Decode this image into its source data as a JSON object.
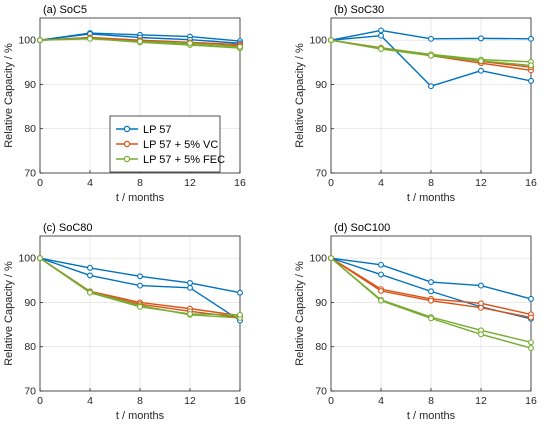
{
  "chart_data": [
    {
      "type": "line",
      "title": "(a) SoC5",
      "xlabel": "t / months",
      "ylabel": "Relative Capacity / %",
      "xlim": [
        0,
        16
      ],
      "ylim": [
        70,
        105
      ],
      "xticks": [
        0,
        4,
        8,
        12,
        16
      ],
      "yticks": [
        70,
        80,
        90,
        100
      ],
      "grid": true,
      "x": [
        0,
        4,
        8,
        12,
        16
      ],
      "series": [
        {
          "name": "LP 57",
          "color": "#0072BD",
          "values": [
            100,
            101.6,
            101.2,
            100.8,
            99.8
          ]
        },
        {
          "name": "LP 57",
          "color": "#0072BD",
          "values": [
            100,
            101.4,
            100.6,
            100.1,
            99.3
          ]
        },
        {
          "name": "LP 57 + 5% VC",
          "color": "#D95319",
          "values": [
            100,
            100.6,
            100.0,
            99.5,
            99.0
          ]
        },
        {
          "name": "LP 57 + 5% VC",
          "color": "#D95319",
          "values": [
            100,
            100.5,
            99.8,
            99.2,
            98.7
          ]
        },
        {
          "name": "LP 57 + 5% FEC",
          "color": "#77AC30",
          "values": [
            100,
            100.4,
            99.5,
            98.9,
            98.2
          ]
        },
        {
          "name": "LP 57 + 5% FEC",
          "color": "#77AC30",
          "values": [
            100,
            100.3,
            99.7,
            99.3,
            98.5
          ]
        }
      ]
    },
    {
      "type": "line",
      "title": "(b) SoC30",
      "xlabel": "t / months",
      "ylabel": "Relative Capacity / %",
      "xlim": [
        0,
        16
      ],
      "ylim": [
        70,
        105
      ],
      "xticks": [
        0,
        4,
        8,
        12,
        16
      ],
      "yticks": [
        70,
        80,
        90,
        100
      ],
      "grid": true,
      "x": [
        0,
        4,
        8,
        12,
        16
      ],
      "series": [
        {
          "name": "LP 57",
          "color": "#0072BD",
          "values": [
            100,
            102.2,
            100.3,
            100.4,
            100.3
          ]
        },
        {
          "name": "LP 57",
          "color": "#0072BD",
          "values": [
            100,
            101.0,
            89.6,
            93.1,
            90.8
          ]
        },
        {
          "name": "LP 57 + 5% VC",
          "color": "#D95319",
          "values": [
            100,
            98.1,
            96.5,
            94.8,
            93.2
          ]
        },
        {
          "name": "LP 57 + 5% VC",
          "color": "#D95319",
          "values": [
            100,
            98.3,
            96.7,
            95.2,
            93.9
          ]
        },
        {
          "name": "LP 57 + 5% FEC",
          "color": "#77AC30",
          "values": [
            100,
            98.2,
            96.8,
            95.6,
            95.1
          ]
        },
        {
          "name": "LP 57 + 5% FEC",
          "color": "#77AC30",
          "values": [
            100,
            98.0,
            96.5,
            95.3,
            94.3
          ]
        }
      ]
    },
    {
      "type": "line",
      "title": "(c) SoC80",
      "xlabel": "t / months",
      "ylabel": "Relative Capacity / %",
      "xlim": [
        0,
        16
      ],
      "ylim": [
        70,
        105
      ],
      "xticks": [
        0,
        4,
        8,
        12,
        16
      ],
      "yticks": [
        70,
        80,
        90,
        100
      ],
      "grid": true,
      "x": [
        0,
        4,
        8,
        12,
        16
      ],
      "series": [
        {
          "name": "LP 57",
          "color": "#0072BD",
          "values": [
            100,
            97.8,
            95.9,
            94.4,
            92.2
          ]
        },
        {
          "name": "LP 57",
          "color": "#0072BD",
          "values": [
            100,
            96.1,
            93.8,
            93.3,
            85.9
          ]
        },
        {
          "name": "LP 57 + 5% VC",
          "color": "#D95319",
          "values": [
            100,
            92.5,
            90.0,
            88.6,
            87.0
          ]
        },
        {
          "name": "LP 57 + 5% VC",
          "color": "#D95319",
          "values": [
            100,
            92.3,
            89.6,
            88.0,
            86.6
          ]
        },
        {
          "name": "LP 57 + 5% FEC",
          "color": "#77AC30",
          "values": [
            100,
            92.4,
            89.3,
            87.2,
            86.5
          ]
        },
        {
          "name": "LP 57 + 5% FEC",
          "color": "#77AC30",
          "values": [
            100,
            92.2,
            89.0,
            87.4,
            87.2
          ]
        }
      ]
    },
    {
      "type": "line",
      "title": "(d) SoC100",
      "xlabel": "t / months",
      "ylabel": "Relative Capacity / %",
      "xlim": [
        0,
        16
      ],
      "ylim": [
        70,
        105
      ],
      "xticks": [
        0,
        4,
        8,
        12,
        16
      ],
      "yticks": [
        70,
        80,
        90,
        100
      ],
      "grid": true,
      "x": [
        0,
        4,
        8,
        12,
        16
      ],
      "series": [
        {
          "name": "LP 57",
          "color": "#0072BD",
          "values": [
            100,
            98.5,
            94.6,
            93.8,
            90.8
          ]
        },
        {
          "name": "LP 57",
          "color": "#0072BD",
          "values": [
            100,
            96.3,
            92.5,
            89.0,
            86.3
          ]
        },
        {
          "name": "LP 57 + 5% VC",
          "color": "#D95319",
          "values": [
            100,
            93.0,
            90.8,
            89.8,
            87.3
          ]
        },
        {
          "name": "LP 57 + 5% VC",
          "color": "#D95319",
          "values": [
            100,
            92.6,
            90.4,
            88.8,
            86.6
          ]
        },
        {
          "name": "LP 57 + 5% FEC",
          "color": "#77AC30",
          "values": [
            100,
            90.6,
            86.7,
            83.7,
            81.0
          ]
        },
        {
          "name": "LP 57 + 5% FEC",
          "color": "#77AC30",
          "values": [
            100,
            90.4,
            86.4,
            82.8,
            79.7
          ]
        }
      ]
    }
  ],
  "legend": {
    "placement": "inside panel (a), lower-right",
    "entries": [
      {
        "label": "LP 57",
        "color": "#0072BD"
      },
      {
        "label": "LP 57 + 5% VC",
        "color": "#D95319"
      },
      {
        "label": "LP 57 + 5% FEC",
        "color": "#77AC30"
      }
    ]
  }
}
